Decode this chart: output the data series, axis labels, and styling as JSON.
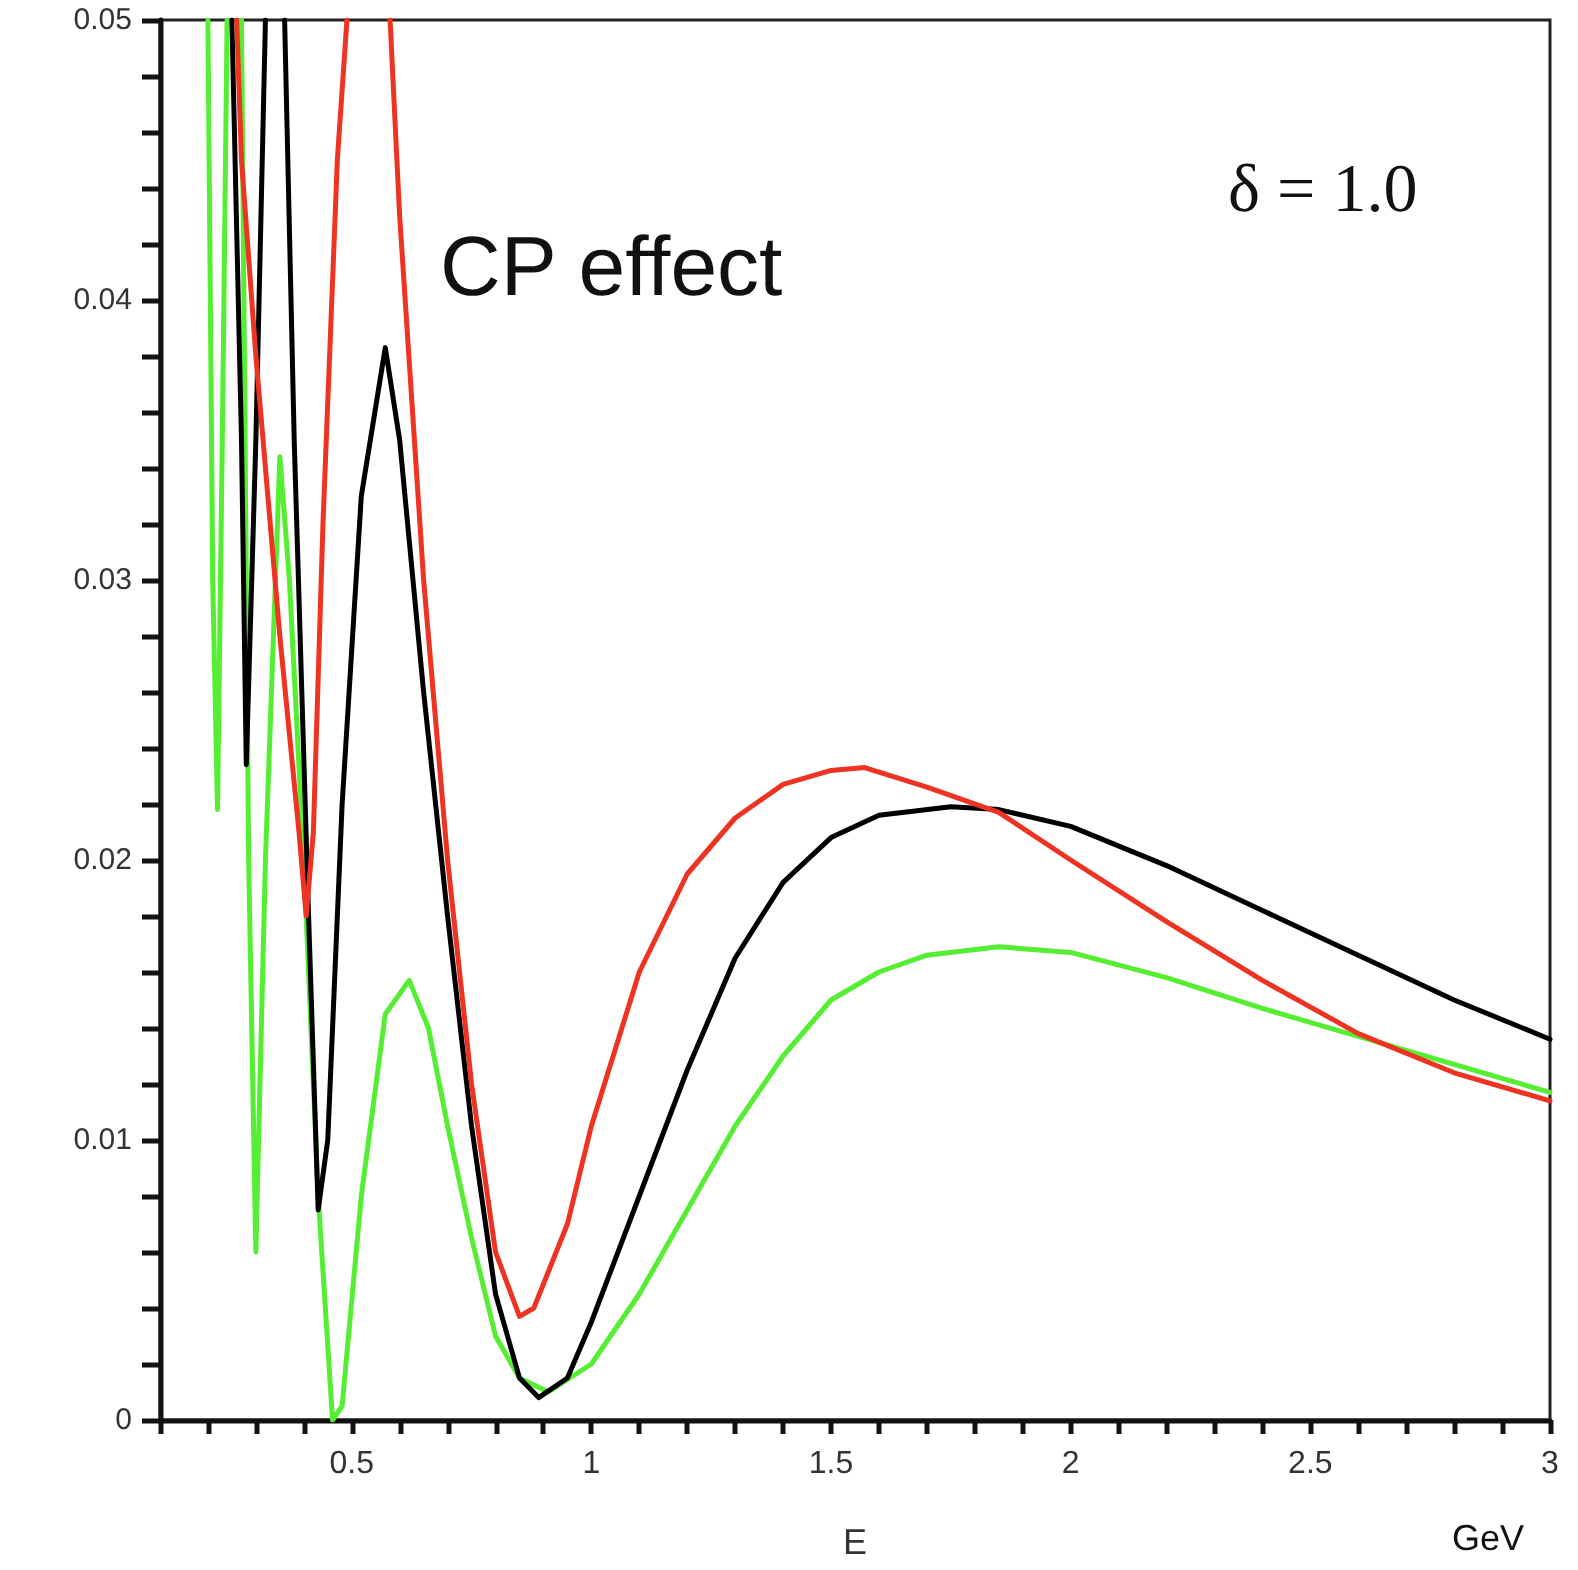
{
  "chart_data": {
    "type": "line",
    "xlabel": "E",
    "annotations": [
      "GeV",
      "CP effect",
      "δ = 1.0"
    ],
    "xlim": [
      0.1,
      3
    ],
    "ylim": [
      0,
      0.05
    ],
    "xticks": [
      {
        "value": 0.1,
        "label": null
      },
      {
        "value": 0.2,
        "label": null
      },
      {
        "value": 0.3,
        "label": null
      },
      {
        "value": 0.4,
        "label": null
      },
      0.5,
      {
        "value": 0.6,
        "label": null
      },
      {
        "value": 0.7,
        "label": null
      },
      {
        "value": 0.8,
        "label": null
      },
      {
        "value": 0.9,
        "label": null
      },
      1,
      {
        "value": 1.1,
        "label": null
      },
      {
        "value": 1.2,
        "label": null
      },
      {
        "value": 1.3,
        "label": null
      },
      {
        "value": 1.4,
        "label": null
      },
      1.5,
      {
        "value": 1.6,
        "label": null
      },
      {
        "value": 1.7,
        "label": null
      },
      {
        "value": 1.8,
        "label": null
      },
      {
        "value": 1.9,
        "label": null
      },
      2,
      {
        "value": 2.1,
        "label": null
      },
      {
        "value": 2.2,
        "label": null
      },
      {
        "value": 2.3,
        "label": null
      },
      {
        "value": 2.4,
        "label": null
      },
      2.5,
      {
        "value": 2.6,
        "label": null
      },
      {
        "value": 2.7,
        "label": null
      },
      {
        "value": 2.8,
        "label": null
      },
      {
        "value": 2.9,
        "label": null
      },
      3
    ],
    "yticks": [
      0,
      {
        "value": 0.002,
        "label": null
      },
      {
        "value": 0.004,
        "label": null
      },
      {
        "value": 0.006,
        "label": null
      },
      {
        "value": 0.008,
        "label": null
      },
      0.01,
      {
        "value": 0.012,
        "label": null
      },
      {
        "value": 0.014,
        "label": null
      },
      {
        "value": 0.016,
        "label": null
      },
      {
        "value": 0.018,
        "label": null
      },
      0.02,
      {
        "value": 0.022,
        "label": null
      },
      {
        "value": 0.024,
        "label": null
      },
      {
        "value": 0.026,
        "label": null
      },
      {
        "value": 0.028,
        "label": null
      },
      0.03,
      {
        "value": 0.032,
        "label": null
      },
      {
        "value": 0.034,
        "label": null
      },
      {
        "value": 0.036,
        "label": null
      },
      {
        "value": 0.038,
        "label": null
      },
      0.04,
      {
        "value": 0.042,
        "label": null
      },
      {
        "value": 0.044,
        "label": null
      },
      {
        "value": 0.046,
        "label": null
      },
      {
        "value": 0.048,
        "label": null
      },
      0.05
    ],
    "grid": false,
    "marker": "none",
    "line_style": "solid",
    "series": [
      {
        "color": "#ee3322",
        "x": [
          0.26,
          0.27,
          0.3,
          0.35,
          0.39,
          0.405,
          0.42,
          0.44,
          0.47,
          0.49,
          0.53,
          0.58,
          0.6,
          0.65,
          0.7,
          0.75,
          0.8,
          0.85,
          0.88,
          0.95,
          1.0,
          1.1,
          1.2,
          1.3,
          1.4,
          1.5,
          1.57,
          1.7,
          1.85,
          2.0,
          2.2,
          2.4,
          2.6,
          2.8,
          3.0
        ],
        "values": [
          0.05,
          0.045,
          0.038,
          0.028,
          0.021,
          0.018,
          0.021,
          0.032,
          0.045,
          0.05,
          null,
          0.05,
          0.043,
          0.03,
          0.02,
          0.012,
          0.006,
          0.0037,
          0.004,
          0.007,
          0.0105,
          0.016,
          0.0195,
          0.0215,
          0.0227,
          0.0232,
          0.0233,
          0.0226,
          0.0217,
          0.02,
          0.0178,
          0.0157,
          0.0138,
          0.0124,
          0.0114
        ]
      },
      {
        "color": "#000000",
        "x": [
          0.25,
          0.27,
          0.28,
          0.3,
          0.32,
          0.34,
          0.36,
          0.38,
          0.41,
          0.43,
          0.45,
          0.48,
          0.52,
          0.57,
          0.6,
          0.65,
          0.7,
          0.75,
          0.8,
          0.85,
          0.89,
          0.95,
          1.0,
          1.1,
          1.2,
          1.3,
          1.4,
          1.5,
          1.6,
          1.75,
          1.85,
          2.0,
          2.2,
          2.4,
          2.6,
          2.8,
          3.0
        ],
        "values": [
          0.05,
          0.035,
          0.0234,
          0.035,
          0.05,
          null,
          0.05,
          0.035,
          0.018,
          0.0075,
          0.01,
          0.022,
          0.033,
          0.0383,
          0.035,
          0.026,
          0.018,
          0.0105,
          0.0045,
          0.0015,
          0.0008,
          0.0015,
          0.0035,
          0.008,
          0.0125,
          0.0165,
          0.0192,
          0.0208,
          0.0216,
          0.0219,
          0.0218,
          0.0212,
          0.0198,
          0.0182,
          0.0166,
          0.015,
          0.0136
        ]
      },
      {
        "color": "#55ee33",
        "x": [
          0.2,
          0.21,
          0.22,
          0.23,
          0.24,
          0.255,
          0.27,
          0.285,
          0.3,
          0.32,
          0.35,
          0.37,
          0.4,
          0.43,
          0.46,
          0.48,
          0.52,
          0.57,
          0.62,
          0.66,
          0.7,
          0.75,
          0.8,
          0.85,
          0.91,
          1.0,
          1.1,
          1.2,
          1.3,
          1.4,
          1.5,
          1.6,
          1.7,
          1.85,
          2.0,
          2.2,
          2.4,
          2.6,
          2.8,
          3.0
        ],
        "values": [
          0.05,
          0.03,
          0.0218,
          0.035,
          0.05,
          null,
          0.05,
          0.02,
          0.006,
          0.02,
          0.0344,
          0.03,
          0.02,
          0.008,
          0,
          0.0005,
          0.008,
          0.0145,
          0.0157,
          0.014,
          0.0105,
          0.0065,
          0.003,
          0.0015,
          0.001,
          0.002,
          0.0045,
          0.0075,
          0.0105,
          0.013,
          0.015,
          0.016,
          0.0166,
          0.0169,
          0.0167,
          0.0158,
          0.0147,
          0.0137,
          0.0127,
          0.0117
        ]
      }
    ]
  }
}
